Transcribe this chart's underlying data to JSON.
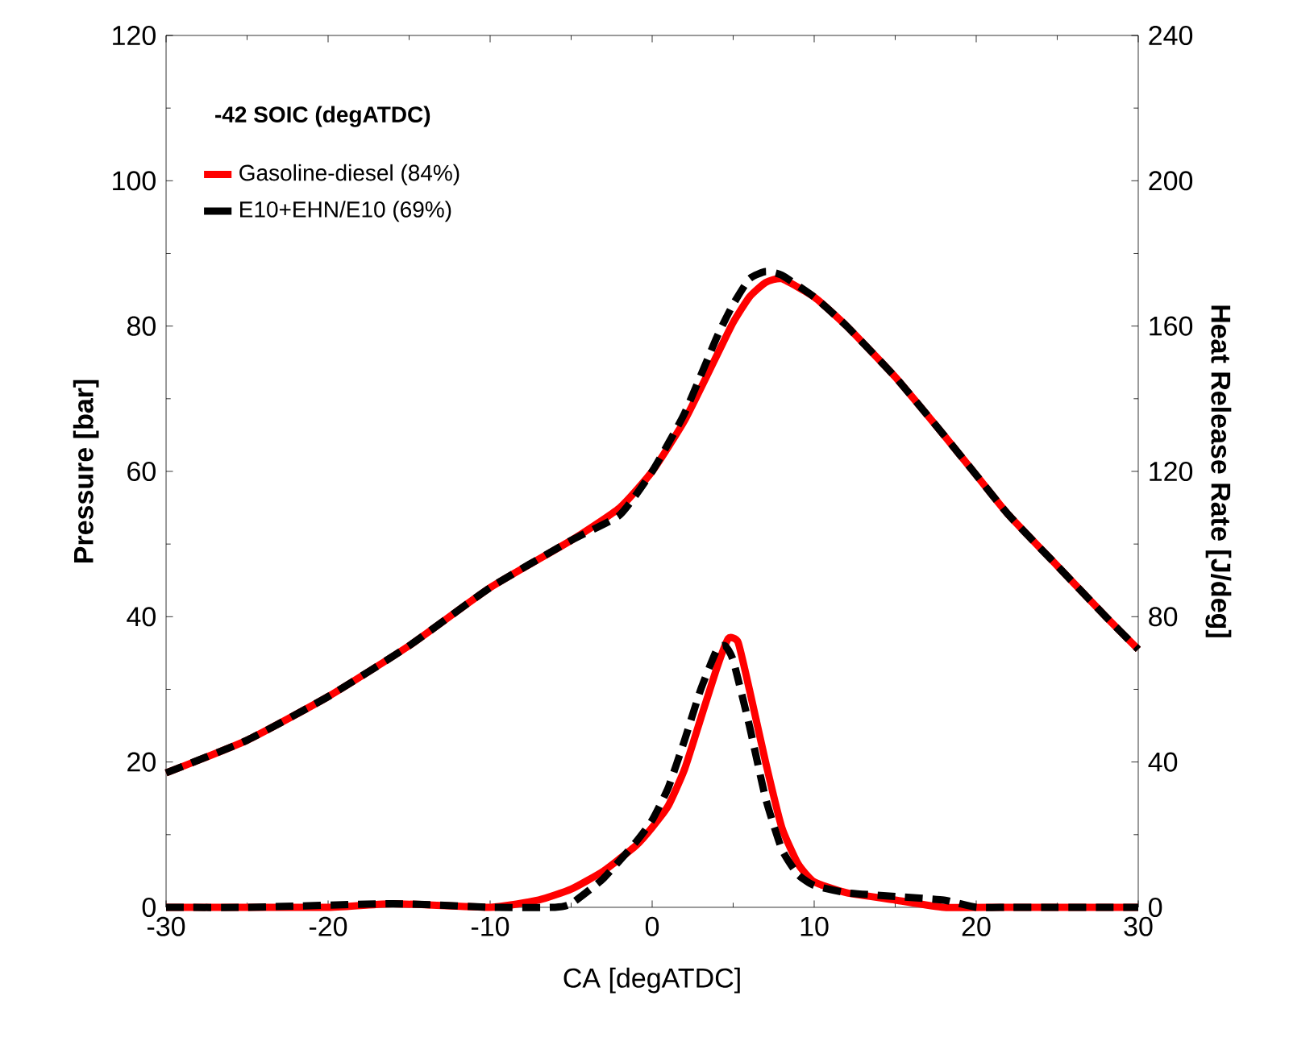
{
  "chart_data": {
    "type": "line",
    "xlabel": "CA [degATDC]",
    "ylabel": "Pressure [bar]",
    "y2label": "Heat Release Rate [J/deg]",
    "annotations": [
      "-42 SOIC (degATDC)"
    ],
    "xlim": [
      -30,
      30
    ],
    "ylim": [
      0,
      120
    ],
    "y2lim": [
      0,
      240
    ],
    "xticks": [
      -30,
      -20,
      -10,
      0,
      10,
      20,
      30
    ],
    "yticks": [
      0,
      20,
      40,
      60,
      80,
      100,
      120
    ],
    "y2ticks": [
      0,
      40,
      80,
      120,
      160,
      200,
      240
    ],
    "legend": "top left",
    "series": [
      {
        "name": "Gasoline-diesel (84%)",
        "color": "#ff0000",
        "line_style": "solid",
        "x": [
          -30,
          -25,
          -20,
          -15,
          -10,
          -5,
          -2,
          0,
          2,
          4,
          5,
          6,
          7,
          8,
          10,
          12,
          15,
          18,
          20,
          22,
          25,
          28,
          30
        ],
        "values": [
          18.5,
          23,
          29,
          36,
          44,
          50.5,
          55,
          60,
          67,
          76,
          80.5,
          84,
          86,
          86.5,
          84,
          80,
          73,
          65,
          59.5,
          54,
          47,
          40,
          35.5
        ]
      },
      {
        "name": "E10+EHN/E10 (69%)",
        "color": "#000000",
        "line_style": "dashed",
        "x": [
          -30,
          -25,
          -20,
          -15,
          -10,
          -5,
          -2,
          0,
          2,
          4,
          5,
          6,
          7,
          8,
          10,
          12,
          15,
          18,
          20,
          22,
          25,
          28,
          30
        ],
        "values": [
          18.5,
          23,
          29,
          36,
          44,
          50.5,
          54,
          60,
          68,
          78.5,
          83,
          86.5,
          87.5,
          87,
          84,
          80,
          73,
          65,
          59.5,
          54,
          47,
          40,
          35.5
        ]
      },
      {
        "color": "#ff0000",
        "line_style": "solid",
        "axis": "y2",
        "x": [
          -30,
          -20,
          -16,
          -10,
          -7,
          -5,
          -3,
          -1,
          0,
          1,
          2,
          3,
          4,
          4.7,
          5.3,
          6,
          7,
          8,
          9,
          10,
          12,
          15,
          18,
          22,
          30
        ],
        "values": [
          0,
          0,
          1,
          0,
          2,
          5,
          10,
          17,
          22,
          28,
          38,
          52,
          66,
          74,
          73,
          60,
          40,
          22,
          12,
          7,
          4,
          2,
          0,
          0,
          0
        ]
      },
      {
        "color": "#000000",
        "line_style": "dashed",
        "axis": "y2",
        "x": [
          -30,
          -25,
          -16,
          -10,
          -6,
          -5,
          -3,
          -1,
          0,
          1,
          2,
          3,
          4,
          4.5,
          5,
          6,
          7,
          8,
          9,
          10,
          12,
          15,
          18,
          20,
          22,
          25,
          28,
          30
        ],
        "values": [
          0,
          0,
          1,
          0,
          0,
          1,
          8,
          18,
          24,
          33,
          46,
          60,
          71,
          72,
          68,
          50,
          30,
          16,
          9,
          6,
          4,
          3,
          2,
          0,
          0,
          0,
          0,
          0
        ]
      }
    ]
  }
}
